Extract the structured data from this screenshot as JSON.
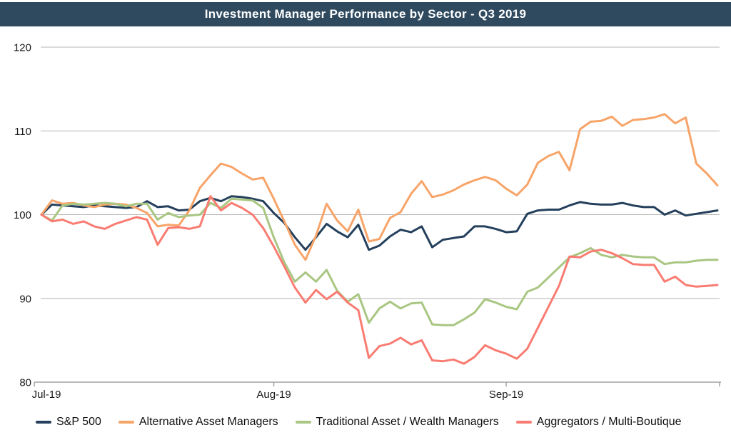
{
  "header": {
    "title": "Investment Manager Performance by Sector - Q3 2019"
  },
  "colors": {
    "header_bg": "#2F4A5F",
    "header_text": "#FFFFFF",
    "gridline": "#B7B7B7",
    "axis": "#A3A3A3",
    "tick_text": "#1A1A1A",
    "plot_bg": "#FFFFFF"
  },
  "chart_data": {
    "type": "line",
    "title": "Investment Manager Performance by Sector - Q3 2019",
    "xlabel": "",
    "ylabel": "",
    "ylim": [
      80,
      120
    ],
    "y_ticks": [
      80,
      90,
      100,
      110,
      120
    ],
    "x_tick_labels": [
      "Jul-19",
      "Aug-19",
      "Sep-19"
    ],
    "x_tick_indices": [
      0,
      22,
      44
    ],
    "grid": true,
    "legend_position": "bottom",
    "n_points": 65,
    "series": [
      {
        "name": "S&P 500",
        "color": "#25405C",
        "values": [
          100.0,
          101.2,
          101.1,
          101.0,
          100.9,
          101.1,
          101.0,
          100.9,
          100.8,
          100.9,
          101.6,
          100.9,
          101.0,
          100.5,
          100.6,
          101.6,
          102.0,
          101.6,
          102.2,
          102.1,
          101.9,
          101.6,
          100.2,
          99.0,
          97.3,
          95.8,
          97.3,
          98.9,
          98.0,
          97.3,
          98.8,
          95.8,
          96.3,
          97.4,
          98.2,
          97.9,
          98.6,
          96.1,
          97.0,
          97.2,
          97.4,
          98.6,
          98.6,
          98.3,
          97.9,
          98.0,
          100.1,
          100.5,
          100.6,
          100.6,
          101.1,
          101.5,
          101.3,
          101.2,
          101.2,
          101.4,
          101.1,
          100.9,
          100.9,
          100.0,
          100.5,
          99.9,
          100.1,
          100.3,
          100.5
        ]
      },
      {
        "name": "Alternative Asset Managers",
        "color": "#F7A469",
        "values": [
          100.0,
          101.7,
          101.3,
          101.4,
          101.1,
          100.9,
          101.2,
          101.3,
          101.2,
          100.8,
          100.2,
          98.6,
          98.8,
          98.7,
          100.5,
          103.2,
          104.7,
          106.1,
          105.7,
          104.9,
          104.2,
          104.4,
          101.9,
          99.2,
          96.4,
          94.6,
          97.5,
          101.3,
          99.3,
          98.0,
          100.6,
          96.8,
          97.1,
          99.6,
          100.3,
          102.5,
          104.0,
          102.1,
          102.4,
          102.9,
          103.6,
          104.1,
          104.5,
          104.1,
          103.1,
          102.3,
          103.6,
          106.2,
          107.0,
          107.5,
          105.3,
          110.2,
          111.1,
          111.2,
          111.7,
          110.6,
          111.3,
          111.4,
          111.6,
          112.0,
          110.9,
          111.6,
          106.1,
          104.9,
          103.5
        ]
      },
      {
        "name": "Traditional Asset / Wealth Managers",
        "color": "#A9C682",
        "values": [
          100.0,
          99.3,
          101.1,
          101.3,
          101.2,
          101.3,
          101.4,
          101.3,
          101.0,
          101.3,
          101.3,
          99.4,
          100.2,
          99.7,
          99.9,
          100.0,
          101.4,
          100.8,
          101.9,
          101.8,
          101.7,
          100.8,
          97.3,
          94.3,
          92.0,
          93.1,
          92.0,
          93.4,
          90.9,
          89.6,
          90.5,
          87.1,
          88.8,
          89.6,
          88.8,
          89.4,
          89.5,
          86.9,
          86.8,
          86.8,
          87.5,
          88.3,
          89.9,
          89.5,
          89.0,
          88.7,
          90.8,
          91.3,
          92.5,
          93.7,
          94.9,
          95.4,
          96.0,
          95.2,
          94.9,
          95.2,
          95.0,
          94.9,
          94.9,
          94.1,
          94.3,
          94.3,
          94.5,
          94.6,
          94.6
        ]
      },
      {
        "name": "Aggregators / Multi-Boutique",
        "color": "#F97C72",
        "values": [
          100.0,
          99.2,
          99.4,
          98.9,
          99.2,
          98.6,
          98.3,
          98.9,
          99.3,
          99.7,
          99.4,
          96.4,
          98.4,
          98.5,
          98.3,
          98.6,
          102.2,
          100.5,
          101.4,
          100.8,
          100.0,
          98.4,
          96.2,
          93.8,
          91.3,
          89.5,
          91.0,
          89.9,
          90.8,
          89.5,
          88.6,
          82.9,
          84.3,
          84.6,
          85.3,
          84.5,
          85.0,
          82.6,
          82.5,
          82.7,
          82.2,
          83.0,
          84.4,
          83.8,
          83.4,
          82.8,
          84.0,
          86.5,
          89.0,
          91.5,
          95.0,
          94.9,
          95.6,
          95.8,
          95.4,
          94.8,
          94.1,
          94.0,
          94.0,
          92.0,
          92.6,
          91.6,
          91.4,
          91.5,
          91.6
        ]
      }
    ]
  }
}
